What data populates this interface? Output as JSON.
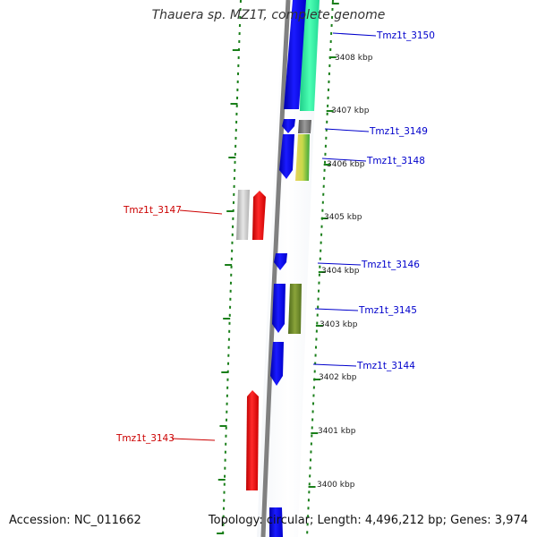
{
  "title": "Thauera sp. MZ1T, complete genome",
  "accession_text": "Accession: NC_011662",
  "topology_text": "Topology: circular; Length: 4,496,212 bp; Genes: 3,974",
  "colors": {
    "backbone": "#808080",
    "tick": "#1a7f1a",
    "label_blue": "#0000cc",
    "label_red": "#cc0000",
    "kbp_text": "#222222"
  },
  "kbp_labels": [
    "3408 kbp",
    "3407 kbp",
    "3406 kbp",
    "3405 kbp",
    "3404 kbp",
    "3403 kbp",
    "3402 kbp",
    "3401 kbp",
    "3400 kbp"
  ],
  "gene_labels": [
    "Tmz1t_3150",
    "Tmz1t_3149",
    "Tmz1t_3148",
    "Tmz1t_3147",
    "Tmz1t_3146",
    "Tmz1t_3145",
    "Tmz1t_3144",
    "Tmz1t_3143"
  ]
}
